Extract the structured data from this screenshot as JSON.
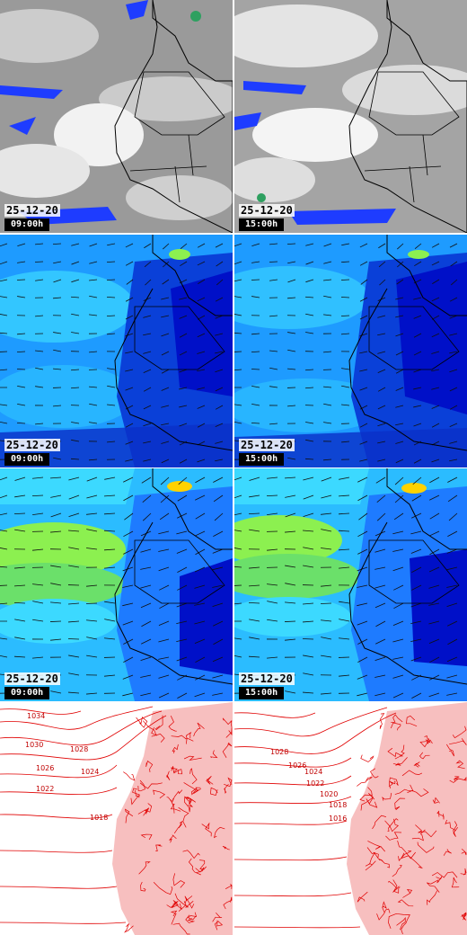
{
  "panels": [
    {
      "row": "satellite",
      "date": "25-12-20",
      "time": "09:00h"
    },
    {
      "row": "satellite",
      "date": "25-12-20",
      "time": "15:00h"
    },
    {
      "row": "wind",
      "date": "25-12-20",
      "time": "09:00h"
    },
    {
      "row": "wind",
      "date": "25-12-20",
      "time": "15:00h"
    },
    {
      "row": "gust",
      "date": "25-12-20",
      "time": "09:00h"
    },
    {
      "row": "gust",
      "date": "25-12-20",
      "time": "15:00h"
    },
    {
      "row": "pressure",
      "date": "",
      "time": ""
    },
    {
      "row": "pressure",
      "date": "",
      "time": ""
    }
  ],
  "isobars_left": [
    "1034",
    "1030",
    "1028",
    "1026",
    "1024",
    "1022",
    "1018"
  ],
  "isobars_right": [
    "1028",
    "1026",
    "1024",
    "1022",
    "1020",
    "1018",
    "1016"
  ],
  "colors": {
    "sat_cloud": "#b8b8b8",
    "sat_rain": "#1e3cff",
    "wind_low": "#0010c8",
    "wind_mid": "#1e9bff",
    "wind_high": "#3cd9ff",
    "wind_peak": "#8cf050",
    "isobar": "#e00000"
  }
}
